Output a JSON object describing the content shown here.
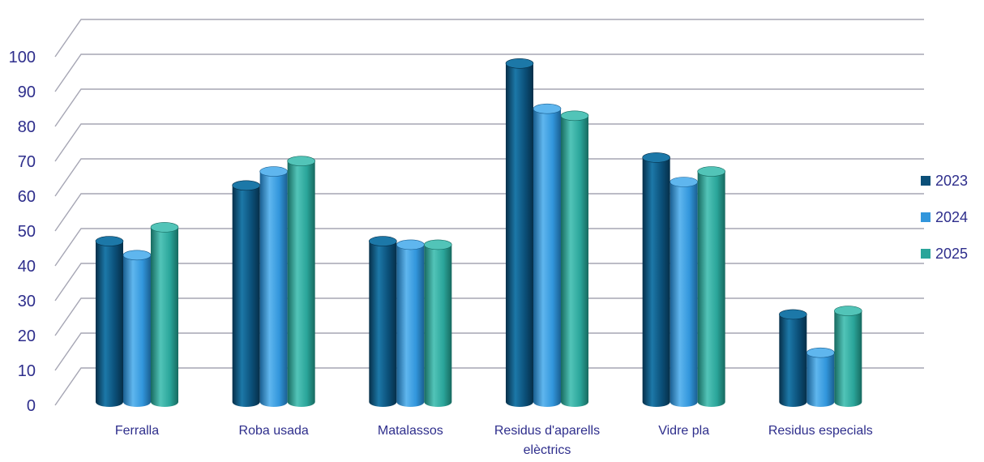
{
  "chart_data": {
    "type": "bar",
    "categories": [
      "Ferralla",
      "Roba usada",
      "Matalassos",
      "Residus d'aparells elèctrics",
      "Vidre pla",
      "Residus especials"
    ],
    "category_lines": [
      [
        "Ferralla"
      ],
      [
        "Roba usada"
      ],
      [
        "Matalassos"
      ],
      [
        "Residus d'aparells",
        "elèctrics"
      ],
      [
        "Vidre pla"
      ],
      [
        "Residus especials"
      ]
    ],
    "series": [
      {
        "name": "2023",
        "values": [
          48,
          64,
          48,
          99,
          72,
          27
        ]
      },
      {
        "name": "2024",
        "values": [
          44,
          68,
          47,
          86,
          65,
          16
        ]
      },
      {
        "name": "2025",
        "values": [
          52,
          71,
          47,
          84,
          68,
          28
        ]
      }
    ],
    "yticks": [
      0,
      10,
      20,
      30,
      40,
      50,
      60,
      70,
      80,
      90,
      100
    ],
    "ylim": [
      0,
      100
    ],
    "grid": true,
    "legend_position": "right",
    "title": "",
    "xlabel": "",
    "ylabel": ""
  },
  "colors": {
    "series": [
      "#0b4f78",
      "#3296dc",
      "#2aa59a"
    ],
    "series_dark": [
      "#062f49",
      "#1a5f91",
      "#17695f"
    ],
    "series_light": [
      "#1c78a8",
      "#5fb6ee",
      "#52c4b8"
    ],
    "text": "#2e2e8c",
    "grid": "#a6a6b4"
  }
}
